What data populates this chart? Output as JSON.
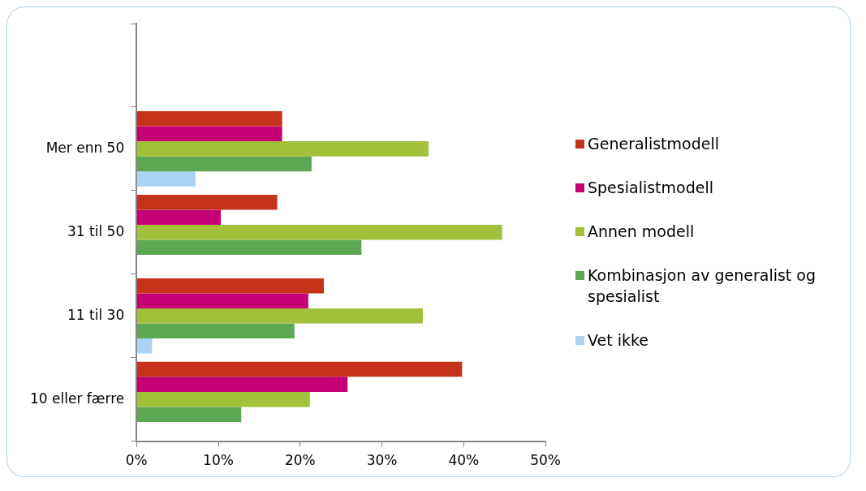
{
  "chart_data": {
    "type": "bar",
    "orientation": "horizontal",
    "categories": [
      null,
      "Mer enn 50",
      "31 til 50",
      "11 til 30",
      "10 eller færre"
    ],
    "series": [
      {
        "name": "Generalistmodell",
        "color": "#c5341a",
        "values": [
          null,
          17.8,
          17.2,
          22.9,
          39.8
        ]
      },
      {
        "name": "Spesialistmodell",
        "color": "#c40074",
        "values": [
          null,
          17.8,
          10.3,
          21.0,
          25.8
        ]
      },
      {
        "name": "Annen modell",
        "color": "#a3c03a",
        "values": [
          null,
          35.7,
          44.7,
          35.0,
          21.2
        ]
      },
      {
        "name": "Kombinasjon av generalist og spesialist",
        "color": "#5ca752",
        "values": [
          null,
          21.4,
          27.5,
          19.3,
          12.8
        ]
      },
      {
        "name": "Vet ikke",
        "color": "#a9d3f3",
        "values": [
          null,
          7.2,
          null,
          1.9,
          null
        ]
      }
    ],
    "xlim": [
      0,
      50
    ],
    "xticks": [
      {
        "value": 0,
        "label": "0%"
      },
      {
        "value": 10,
        "label": "10%"
      },
      {
        "value": 20,
        "label": "20%"
      },
      {
        "value": 30,
        "label": "30%"
      },
      {
        "value": 40,
        "label": "40%"
      },
      {
        "value": 50,
        "label": "50%"
      }
    ],
    "grid": false,
    "legend": "right"
  }
}
